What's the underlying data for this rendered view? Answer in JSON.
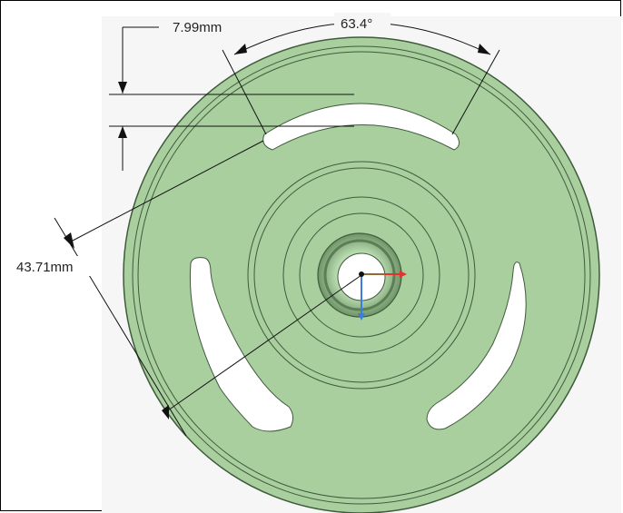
{
  "drawing": {
    "dimension_slot_width": "7.99mm",
    "dimension_slot_angle": "63.4°",
    "dimension_slot_radius": "43.71mm"
  },
  "colors": {
    "part_fill": "#a9cf9f",
    "part_edge": "#3f5a3c",
    "dimension_line": "#111111",
    "axis_x": "#e53030",
    "axis_y": "#3a7de0",
    "axis_z": "#30b040"
  }
}
